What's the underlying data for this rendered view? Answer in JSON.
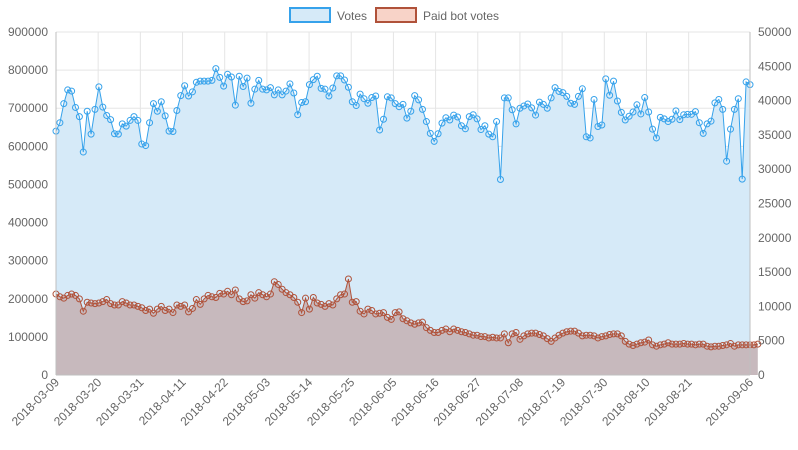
{
  "chart_data": {
    "type": "line",
    "title": "",
    "xlabel": "",
    "ylabel": "",
    "legend": {
      "placement": "top-center"
    },
    "grid": true,
    "x_tick_labels": [
      "2018-03-09",
      "2018-03-20",
      "2018-03-31",
      "2018-04-11",
      "2018-04-22",
      "2018-05-03",
      "2018-05-14",
      "2018-05-25",
      "2018-06-05",
      "2018-06-16",
      "2018-06-27",
      "2018-07-08",
      "2018-07-19",
      "2018-07-30",
      "2018-08-10",
      "2018-08-21",
      "2018-09-06"
    ],
    "x_start_date": "2018-03-09",
    "x_end_date": "2018-09-06",
    "y_left": {
      "min": 0,
      "max": 900000,
      "step": 100000,
      "tick_labels": [
        "0",
        "100000",
        "200000",
        "300000",
        "400000",
        "500000",
        "600000",
        "700000",
        "800000",
        "900000"
      ]
    },
    "y_right": {
      "min": 0,
      "max": 50000,
      "step": 5000,
      "tick_labels": [
        "0",
        "5000",
        "10000",
        "15000",
        "20000",
        "25000",
        "30000",
        "35000",
        "40000",
        "45000",
        "50000"
      ]
    },
    "series": [
      {
        "name": "Votes",
        "axis": "left",
        "color": "#36a2eb",
        "fill": "#d6eaf8",
        "values": [
          640000,
          662000,
          712000,
          748000,
          745000,
          702000,
          678000,
          585000,
          692000,
          632000,
          697000,
          756000,
          703000,
          681000,
          670000,
          633000,
          632000,
          659000,
          653000,
          668000,
          678000,
          668000,
          606000,
          602000,
          662000,
          712000,
          692000,
          717000,
          680000,
          640000,
          639000,
          694000,
          733000,
          759000,
          732000,
          743000,
          768000,
          771000,
          771000,
          771000,
          773000,
          804000,
          781000,
          758000,
          789000,
          782000,
          708000,
          784000,
          757000,
          779000,
          713000,
          750000,
          773000,
          750000,
          748000,
          754000,
          735000,
          748000,
          735000,
          745000,
          764000,
          740000,
          683000,
          715000,
          717000,
          762000,
          775000,
          784000,
          752000,
          750000,
          732000,
          753000,
          785000,
          785000,
          774000,
          755000,
          717000,
          707000,
          737000,
          725000,
          713000,
          728000,
          732000,
          643000,
          671000,
          730000,
          727000,
          712000,
          704000,
          710000,
          674000,
          692000,
          733000,
          722000,
          697000,
          665000,
          634000,
          613000,
          633000,
          661000,
          675000,
          669000,
          682000,
          677000,
          654000,
          646000,
          678000,
          683000,
          672000,
          644000,
          654000,
          632000,
          625000,
          665000,
          513000,
          727000,
          727000,
          696000,
          659000,
          700000,
          706000,
          711000,
          701000,
          682000,
          716000,
          710000,
          700000,
          727000,
          754000,
          744000,
          741000,
          731000,
          713000,
          710000,
          731000,
          751000,
          625000,
          622000,
          723000,
          652000,
          656000,
          777000,
          734000,
          771000,
          719000,
          689000,
          669000,
          679000,
          690000,
          709000,
          685000,
          728000,
          690000,
          645000,
          622000,
          676000,
          672000,
          665000,
          671000,
          693000,
          670000,
          683000,
          684000,
          684000,
          691000,
          662000,
          634000,
          659000,
          666000,
          714000,
          723000,
          697000,
          561000,
          645000,
          697000,
          725000,
          514000,
          769000,
          762000
        ]
      },
      {
        "name": "Paid bot votes",
        "axis": "right",
        "color": "#b0523a",
        "fill": "#c7b9bd",
        "values": [
          11800,
          11400,
          11200,
          11600,
          11800,
          11600,
          11100,
          9300,
          10600,
          10500,
          10400,
          10500,
          10700,
          11000,
          10400,
          10200,
          10200,
          10700,
          10500,
          10200,
          10200,
          10000,
          9800,
          9400,
          9600,
          9000,
          9600,
          10000,
          9400,
          9600,
          9100,
          10200,
          10000,
          10200,
          9200,
          9700,
          11000,
          10300,
          11100,
          11600,
          11400,
          11300,
          11900,
          11800,
          12200,
          11700,
          12400,
          11100,
          10700,
          10800,
          11700,
          11200,
          12000,
          11700,
          11400,
          11800,
          13600,
          13200,
          12500,
          12000,
          11700,
          11300,
          10600,
          9100,
          11200,
          9600,
          11300,
          10500,
          10300,
          10000,
          10400,
          10200,
          11100,
          11700,
          11800,
          14000,
          10600,
          10700,
          9300,
          8900,
          9600,
          9400,
          8900,
          9000,
          9100,
          8400,
          8100,
          9100,
          9200,
          8200,
          7900,
          7600,
          7400,
          7600,
          7700,
          6900,
          6500,
          6200,
          6200,
          6500,
          6700,
          6300,
          6700,
          6500,
          6300,
          6200,
          6000,
          5800,
          5800,
          5600,
          5600,
          5400,
          5500,
          5400,
          5400,
          6000,
          4700,
          6000,
          6200,
          5200,
          5700,
          6000,
          6100,
          6100,
          5900,
          5700,
          5300,
          4900,
          5400,
          5800,
          6100,
          6300,
          6400,
          6400,
          6100,
          5700,
          5800,
          5800,
          5700,
          5400,
          5600,
          5700,
          5900,
          6000,
          6000,
          5700,
          4900,
          4500,
          4300,
          4500,
          4700,
          4800,
          5100,
          4400,
          4200,
          4400,
          4500,
          4700,
          4500,
          4500,
          4500,
          4600,
          4500,
          4500,
          4400,
          4500,
          4500,
          4200,
          4100,
          4200,
          4200,
          4300,
          4400,
          4600,
          4200,
          4400,
          4400,
          4400,
          4400,
          4400,
          4500
        ]
      }
    ]
  }
}
